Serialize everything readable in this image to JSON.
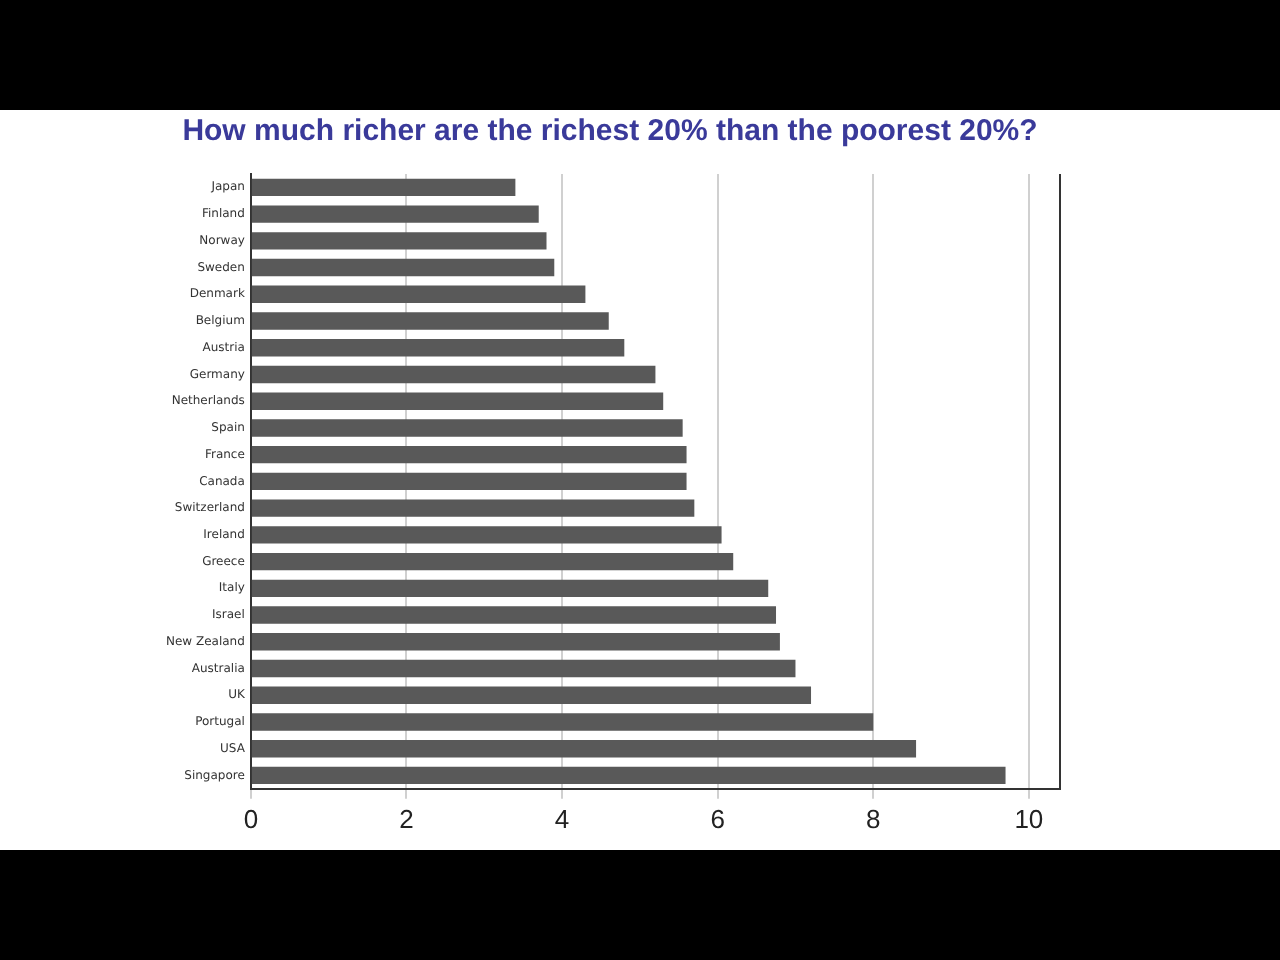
{
  "chart_data": {
    "type": "bar",
    "orientation": "horizontal",
    "title": "How much richer are the richest 20% than the poorest 20%?",
    "categories": [
      "Japan",
      "Finland",
      "Norway",
      "Sweden",
      "Denmark",
      "Belgium",
      "Austria",
      "Germany",
      "Netherlands",
      "Spain",
      "France",
      "Canada",
      "Switzerland",
      "Ireland",
      "Greece",
      "Italy",
      "Israel",
      "New Zealand",
      "Australia",
      "UK",
      "Portugal",
      "USA",
      "Singapore"
    ],
    "values": [
      3.4,
      3.7,
      3.8,
      3.9,
      4.3,
      4.6,
      4.8,
      5.2,
      5.3,
      5.55,
      5.6,
      5.6,
      5.7,
      6.05,
      6.2,
      6.65,
      6.75,
      6.8,
      7.0,
      7.2,
      8.0,
      8.55,
      9.7
    ],
    "color": "#595959",
    "xlim": [
      0,
      10.4
    ],
    "xticks": [
      0,
      2,
      4,
      6,
      8,
      10
    ],
    "grid": "x",
    "legend": false
  }
}
